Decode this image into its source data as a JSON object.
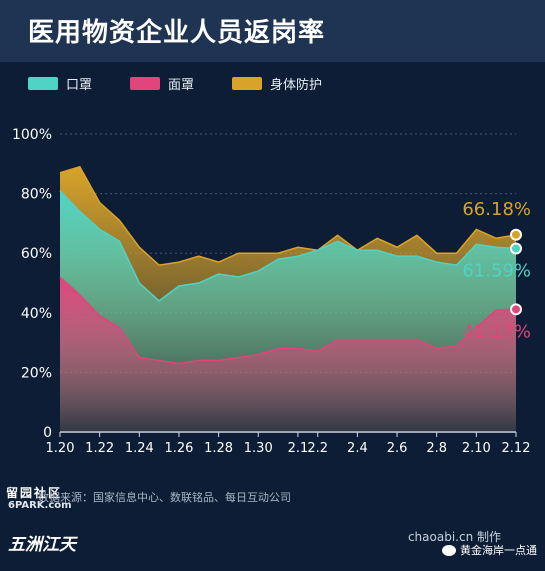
{
  "header": {
    "title": "医用物资企业人员返岗率"
  },
  "legend": [
    {
      "label": "口罩",
      "color": "#4fd3c4"
    },
    {
      "label": "面罩",
      "color": "#e0457b"
    },
    {
      "label": "身体防护",
      "color": "#d9a32a"
    }
  ],
  "footer": {
    "source": "数据来源：国家信息中心、数联铭品、每日互动公司",
    "credit": "chaoabi.cn 制作",
    "watermark_shequ": "留园社区",
    "watermark_6park": "6PARK.com",
    "watermark_seal": "五洲江天",
    "wechat_author": "黄金海岸一点通"
  },
  "chart_data": {
    "type": "area",
    "title": "医用物资企业人员返岗率",
    "x": [
      "1.20",
      "1.21",
      "1.22",
      "1.23",
      "1.24",
      "1.25",
      "1.26",
      "1.27",
      "1.28",
      "1.29",
      "1.30",
      "1.31",
      "2.1",
      "2.2",
      "2.3",
      "2.4",
      "2.5",
      "2.6",
      "2.7",
      "2.8",
      "2.9",
      "2.10",
      "2.11",
      "2.12"
    ],
    "x_tick_labels": [
      "1.20",
      "1.22",
      "1.24",
      "1.26",
      "1.28",
      "1.30",
      "2.1",
      "2.2",
      "2.4",
      "2.6",
      "2.8",
      "2.10",
      "2.12"
    ],
    "y_tick_labels": [
      "0",
      "20%",
      "40%",
      "60%",
      "80%",
      "100%"
    ],
    "ylim": [
      0,
      100
    ],
    "series": [
      {
        "name": "身体防护",
        "color": "#d9a32a",
        "values": [
          87,
          89,
          77,
          71,
          62,
          56,
          57,
          59,
          57,
          60,
          60,
          60,
          62,
          61,
          66,
          61,
          65,
          62,
          66,
          60,
          60,
          68,
          65,
          66.18
        ],
        "end_label": "66.18%"
      },
      {
        "name": "口罩",
        "color": "#4fd3c4",
        "values": [
          81,
          74,
          68,
          64,
          50,
          44,
          49,
          50,
          53,
          52,
          54,
          58,
          59,
          61,
          64,
          61,
          61,
          59,
          59,
          57,
          56,
          63,
          62,
          61.59
        ],
        "end_label": "61.59%"
      },
      {
        "name": "面罩",
        "color": "#e0457b",
        "values": [
          52,
          46,
          39,
          35,
          25,
          24,
          23,
          24,
          24,
          25,
          26,
          28,
          28,
          27,
          31,
          31,
          31,
          31,
          31,
          28,
          29,
          35,
          41,
          41.17
        ],
        "end_label": "41.17%"
      }
    ],
    "grid": true,
    "legend_position": "top-left"
  }
}
